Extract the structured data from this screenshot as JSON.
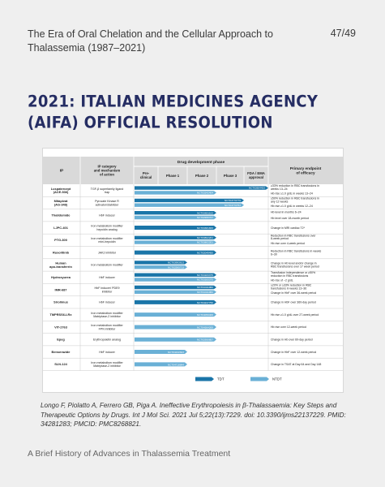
{
  "header": {
    "title": "The Era of Oral Chelation and the Cellular Approach to Thalassemia (1987–2021)",
    "page": "47/49"
  },
  "slide_title": "2021: Italian Medicines Agency (AIFA) Official Resolution",
  "figure": {
    "col_ip": "IP",
    "col_category": "IP category and mechanism of action",
    "col_phase_group": "Drug development phase",
    "col_preclinical": "Pre-clinical",
    "col_phase1": "Phase 1",
    "col_phase2": "Phase 2",
    "col_phase3": "Phase 3",
    "col_approval": "FDA / EMA approval",
    "col_endpoint": "Primary endpoint of efficacy",
    "legend_tdt": "TDT",
    "legend_ntdt": "NTDT",
    "colors": {
      "tdt": "#1a75a8",
      "ntdt": "#6ab0d6",
      "header_bg": "#d9d9d9",
      "grid": "#bdbdbd"
    },
    "rows": [
      {
        "ip": "Luspatercept (ACE-536)",
        "category": "TGF-β superfamily ligand trap",
        "bars": [
          {
            "type": "tdt",
            "end": "approval",
            "label": "NCT02604433"
          },
          {
            "type": "ntdt",
            "end": "phase2",
            "label": "NCT03342404"
          }
        ],
        "endpoints": [
          "≥33% reduction in RBC transfusions in weeks 13–24",
          "Hb rise ≥1.0 g/dL in weeks 13–24"
        ]
      },
      {
        "ip": "Mitapivat (AG-348)",
        "category": "Pyruvate Kinase R activator/stabilizer",
        "bars": [
          {
            "type": "tdt",
            "end": "phase3",
            "label": "NCT04770779"
          },
          {
            "type": "ntdt",
            "end": "phase3",
            "label": "NCT04770753"
          }
        ],
        "endpoints": [
          "≥50% reduction in RBC transfusions in any 12 weeks",
          "Hb rise ≥1.0 g/dL in weeks 12–24"
        ]
      },
      {
        "ip": "Thalidomide",
        "category": "HbF inducer",
        "bars": [
          {
            "type": "tdt",
            "end": "phase2",
            "label": "NCT03651102"
          },
          {
            "type": "ntdt",
            "end": "phase2",
            "label": "NCT02995707"
          }
        ],
        "endpoints": [
          "Hb level in months 6–24",
          "Hb level over 18-month period"
        ]
      },
      {
        "ip": "LJPC-401",
        "category": "Iron metabolism modifier hepcidin analog",
        "bars": [
          {
            "type": "tdt",
            "end": "phase2",
            "label": "NCT03381833"
          }
        ],
        "endpoints": [
          "Change in MRI cardiac T2*"
        ]
      },
      {
        "ip": "PTG-300",
        "category": "Iron metabolism modifier mini-hepcidin",
        "bars": [
          {
            "type": "tdt",
            "end": "phase2",
            "label": "NCT03802201"
          },
          {
            "type": "ntdt",
            "end": "phase2",
            "label": "NCT03802201"
          }
        ],
        "endpoints": [
          "Reduction in RBC transfusions over 8-week period",
          "Hb rise over 4-week period"
        ]
      },
      {
        "ip": "Ruxolitinib",
        "category": "JAK2 inhibitor",
        "bars": [
          {
            "type": "tdt",
            "end": "phase2",
            "label": "NCT02049450"
          }
        ],
        "endpoints": [
          "Reduction in RBC transfusions in weeks 6–30"
        ]
      },
      {
        "ip": "Human apo-transferrin",
        "category": "Iron metabolism modifier",
        "bars": [
          {
            "type": "tdt",
            "end": "phase1",
            "label": "NCT03993613"
          },
          {
            "type": "ntdt",
            "end": "phase1",
            "label": "NCT02585713"
          }
        ],
        "endpoints": [
          "Change in Hb level and/or change in RBC transfusions over 17 week period"
        ]
      },
      {
        "ip": "Hydroxyurea",
        "category": "HbF inducer",
        "bars": [
          {
            "type": "tdt",
            "end": "phase2",
            "label": "NCT03183375"
          },
          {
            "type": "ntdt",
            "end": "phase2",
            "label": "NCT03183375"
          }
        ],
        "endpoints": [
          "Transfusion independence or ≥50% reduction in RBC transfusions",
          "Hb rise of ~2 g/dL"
        ]
      },
      {
        "ip": "IMR-687",
        "category": "HbF inducer/ PDE9 inhibitor",
        "bars": [
          {
            "type": "tdt",
            "end": "phase2",
            "label": "NCT04411082"
          },
          {
            "type": "ntdt",
            "end": "phase2",
            "label": "NCT04411082"
          }
        ],
        "endpoints": [
          "≥20% or ≥33% reduction in RBC transfusions in weeks 13–36",
          "Change in HbF over 36-week period"
        ]
      },
      {
        "ip": "Sirolimus",
        "category": "HbF inducer",
        "bars": [
          {
            "type": "tdt",
            "end": "phase2",
            "label": "NCT04247750"
          }
        ],
        "endpoints": [
          "Change in HbF over 360-day period"
        ]
      },
      {
        "ip": "TMPRSS6-LRx",
        "category": "Iron metabolism modifier Matriptase-2 inhibitor",
        "bars": [
          {
            "type": "ntdt",
            "end": "phase2",
            "label": "NCT04059406"
          }
        ],
        "endpoints": [
          "Hb rise ≥1.0 g/dL over 27-week period"
        ]
      },
      {
        "ip": "VIT-2763",
        "category": "Iron metabolism modifier FPN inhibitor",
        "bars": [
          {
            "type": "ntdt",
            "end": "phase2",
            "label": "NCT04364269"
          }
        ],
        "endpoints": [
          "Hb rise over 12-week period"
        ]
      },
      {
        "ip": "Epeg",
        "category": "Erythropoietin analog",
        "bars": [
          {
            "type": "ntdt",
            "end": "phase2",
            "label": "NCT02950857"
          }
        ],
        "endpoints": [
          "Change in Hb over 60-day period"
        ]
      },
      {
        "ip": "Benserazide",
        "category": "HbF inducer",
        "bars": [
          {
            "type": "ntdt",
            "end": "phase1",
            "label": "NCT04432623"
          }
        ],
        "endpoints": [
          "Change in HbF over 12-week period"
        ]
      },
      {
        "ip": "SLN-124",
        "category": "Iron metabolism modifier Matriptase-2 inhibitor",
        "bars": [
          {
            "type": "ntdt",
            "end": "phase1",
            "label": "NCT04718844"
          }
        ],
        "endpoints": [
          "Change in TSAT at Day 64 and Day 148"
        ]
      }
    ]
  },
  "citation": "Longo F, Piolatto A, Ferrero GB, Piga A. Ineffective Erythropoiesis in β-Thalassaemia: Key Steps and Therapeutic Options by Drugs. Int J Mol Sci. 2021 Jul 5;22(13):7229. doi: 10.3390/ijms22137229. PMID: 34281283; PMCID: PMC8268821.",
  "footer": "A Brief History of Advances in Thalassemia Treatment"
}
